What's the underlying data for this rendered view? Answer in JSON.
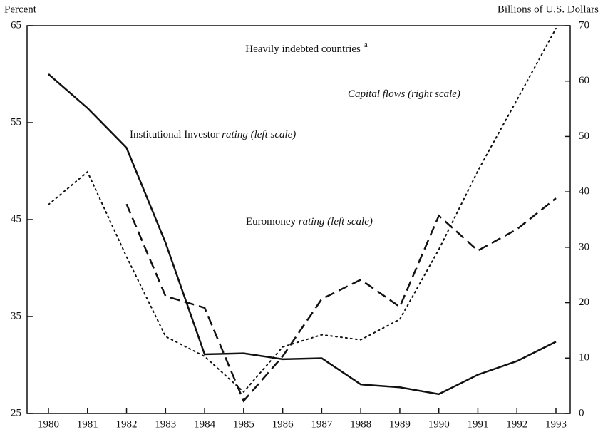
{
  "chart_data": {
    "type": "line",
    "title": "Heavily indebted countries",
    "title_note": "a",
    "y_label": "Percent",
    "y2_label": "Billions of U.S. Dollars",
    "categories": [
      "1980",
      "1981",
      "1982",
      "1983",
      "1984",
      "1985",
      "1986",
      "1987",
      "1988",
      "1989",
      "1990",
      "1991",
      "1992",
      "1993"
    ],
    "ylim": [
      25,
      65
    ],
    "yticks": [
      25,
      35,
      45,
      55,
      65
    ],
    "y2lim": [
      0,
      70
    ],
    "y2ticks": [
      0,
      10,
      20,
      30,
      40,
      50,
      60,
      70
    ],
    "series": [
      {
        "label": [
          {
            "text": "Institutional Investor "
          },
          {
            "text": "rating (left scale)",
            "italic": true
          }
        ],
        "color": "#111111",
        "dash": "solid",
        "values": [
          60.0,
          56.5,
          52.4,
          42.6,
          31.1,
          31.2,
          30.6,
          30.7,
          28.0,
          27.7,
          27.0,
          29.0,
          30.4,
          32.4
        ]
      },
      {
        "label": [
          {
            "text": "Euromoney "
          },
          {
            "text": "rating (left scale)",
            "italic": true
          }
        ],
        "color": "#111111",
        "dash": "dashed",
        "values": [
          null,
          null,
          46.6,
          37.1,
          35.9,
          26.3,
          30.9,
          36.8,
          38.8,
          36.0,
          45.4,
          41.8,
          44.0,
          47.2
        ]
      },
      {
        "label": [
          {
            "text": "Capital flows (right scale)",
            "italic": true
          }
        ],
        "color": "#111111",
        "dash": "dotted",
        "axis": "y2",
        "values": [
          37.7,
          43.6,
          28.3,
          13.9,
          10.3,
          3.9,
          12.0,
          14.2,
          13.3,
          17.0,
          29.6,
          43.8,
          56.6,
          69.5
        ]
      }
    ]
  }
}
